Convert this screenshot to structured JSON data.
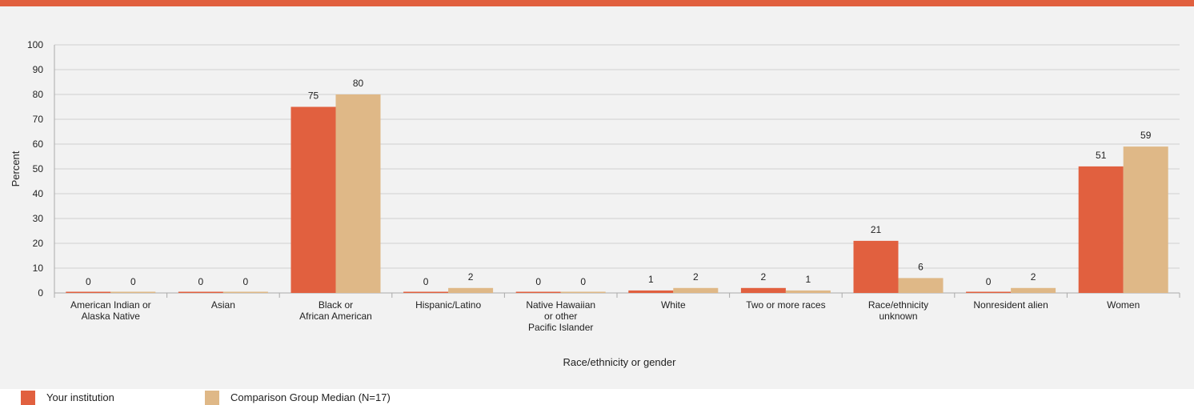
{
  "chart_data": {
    "type": "bar",
    "title": "",
    "xlabel": "Race/ethnicity or gender",
    "ylabel": "Percent",
    "ylim": [
      0,
      100
    ],
    "yticks": [
      0,
      10,
      20,
      30,
      40,
      50,
      60,
      70,
      80,
      90,
      100
    ],
    "grid": true,
    "legend_position": "bottom-left",
    "categories": [
      [
        "American Indian or",
        "Alaska Native"
      ],
      [
        "Asian"
      ],
      [
        "Black or",
        "African American"
      ],
      [
        "Hispanic/Latino"
      ],
      [
        "Native Hawaiian",
        "or other",
        "Pacific Islander"
      ],
      [
        "White"
      ],
      [
        "Two or more races"
      ],
      [
        "Race/ethnicity",
        "unknown"
      ],
      [
        "Nonresident alien"
      ],
      [
        "Women"
      ]
    ],
    "series": [
      {
        "name": "Your institution",
        "color": "#e1603f",
        "values": [
          0,
          0,
          75,
          0,
          0,
          1,
          2,
          21,
          0,
          51
        ]
      },
      {
        "name": "Comparison Group Median (N=17)",
        "color": "#dfb887",
        "values": [
          0,
          0,
          80,
          2,
          0,
          2,
          1,
          6,
          2,
          59
        ]
      }
    ]
  }
}
